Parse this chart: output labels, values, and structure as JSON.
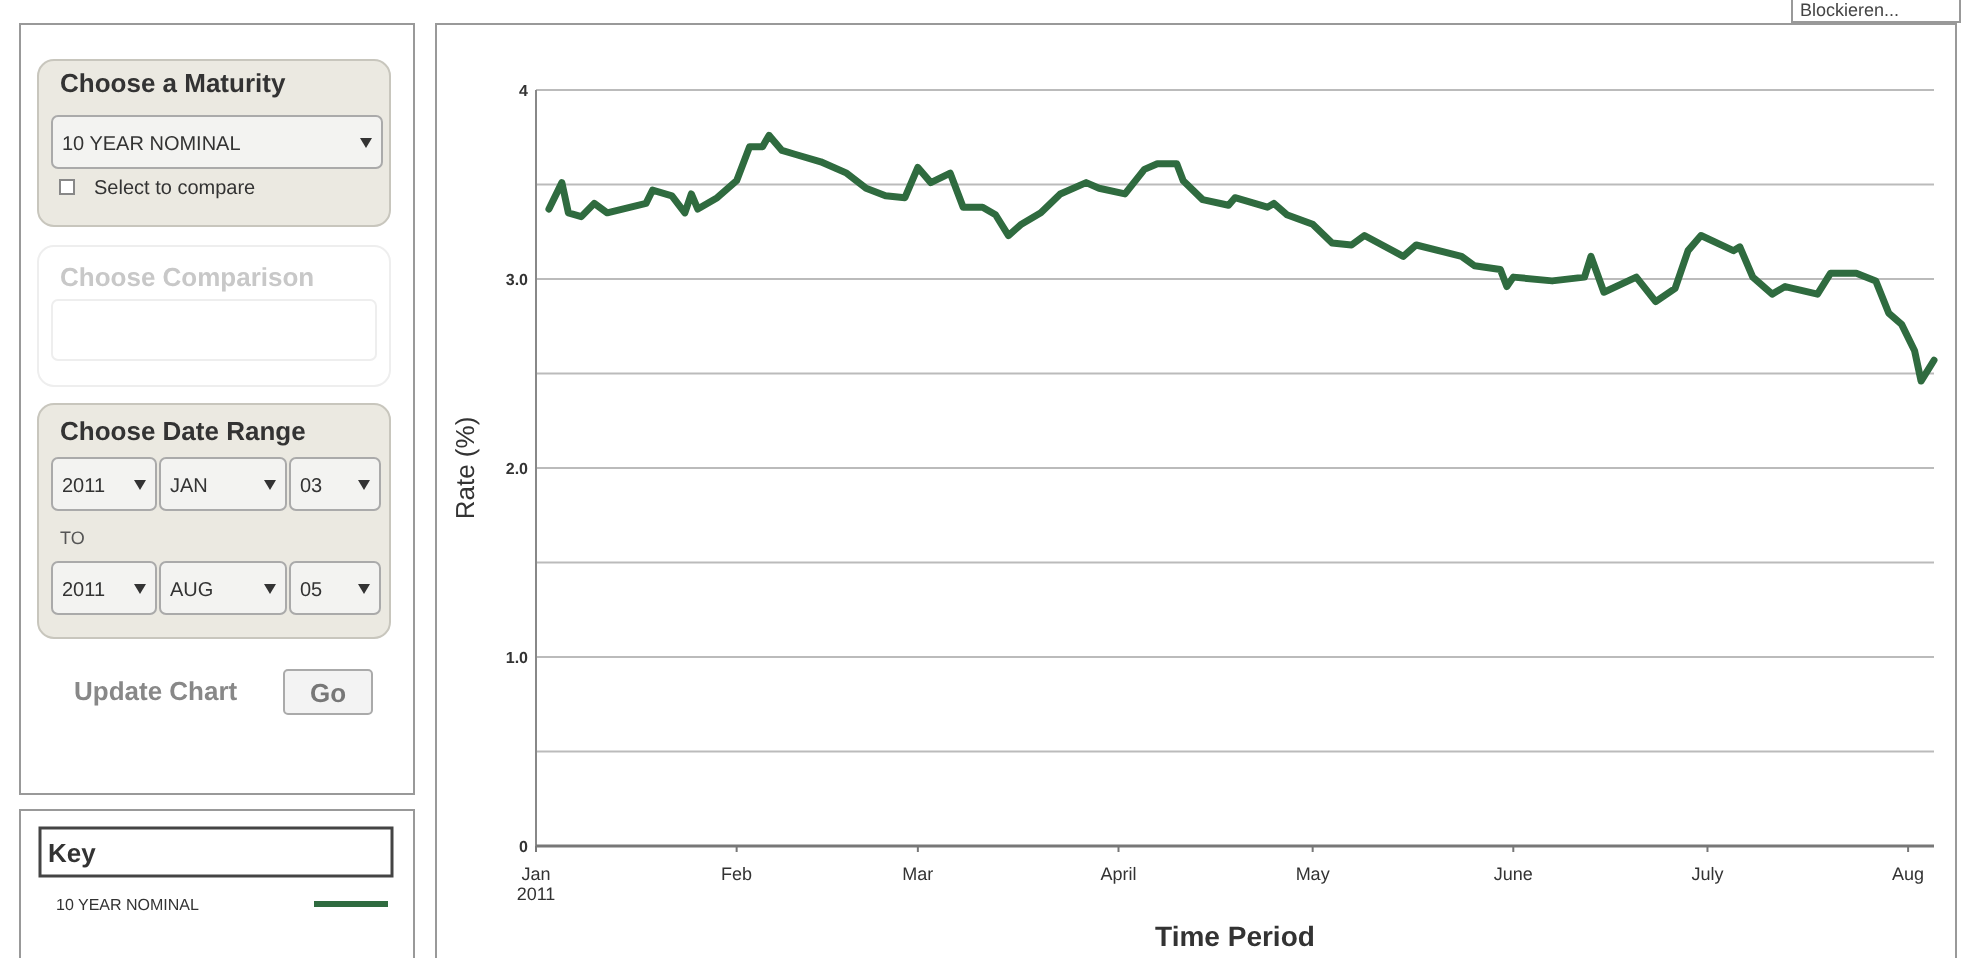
{
  "chart_data": {
    "type": "line",
    "xlabel": "Time Period",
    "ylabel": "Rate (%)",
    "legend_title": "Key",
    "legend": "left",
    "grid": "y",
    "marker": "none",
    "line_style": "solid",
    "xlim": [
      "2011-01-01",
      "2011-08-05"
    ],
    "xticks": [
      {
        "value": "2011-01-01",
        "label": "Jan\n2011"
      },
      {
        "value": "2011-02-01",
        "label": "Feb"
      },
      {
        "value": "2011-03-01",
        "label": "Mar"
      },
      {
        "value": "2011-04-01",
        "label": "April"
      },
      {
        "value": "2011-05-01",
        "label": "May"
      },
      {
        "value": "2011-06-01",
        "label": "June"
      },
      {
        "value": "2011-07-01",
        "label": "July"
      },
      {
        "value": "2011-08-01",
        "label": "Aug"
      }
    ],
    "ylim": [
      0,
      4
    ],
    "yticks": [
      0,
      {
        "value": 0.5,
        "label": null
      },
      {
        "value": 1,
        "label": "1.0"
      },
      {
        "value": 1.5,
        "label": null
      },
      {
        "value": 2,
        "label": "2.0"
      },
      {
        "value": 2.5,
        "label": null
      },
      {
        "value": 3,
        "label": "3.0"
      },
      {
        "value": 3.5,
        "label": null
      },
      4
    ],
    "x": [
      "2011-01-03",
      "2011-01-05",
      "2011-01-06",
      "2011-01-08",
      "2011-01-10",
      "2011-01-12",
      "2011-01-18",
      "2011-01-19",
      "2011-01-22",
      "2011-01-24",
      "2011-01-25",
      "2011-01-26",
      "2011-01-29",
      "2011-02-01",
      "2011-02-03",
      "2011-02-05",
      "2011-02-06",
      "2011-02-08",
      "2011-02-10",
      "2011-02-14",
      "2011-02-18",
      "2011-02-21",
      "2011-02-24",
      "2011-02-27",
      "2011-03-01",
      "2011-03-03",
      "2011-03-06",
      "2011-03-08",
      "2011-03-11",
      "2011-03-13",
      "2011-03-15",
      "2011-03-17",
      "2011-03-20",
      "2011-03-23",
      "2011-03-27",
      "2011-03-29",
      "2011-04-02",
      "2011-04-05",
      "2011-04-07",
      "2011-04-10",
      "2011-04-11",
      "2011-04-14",
      "2011-04-18",
      "2011-04-19",
      "2011-04-24",
      "2011-04-25",
      "2011-04-27",
      "2011-05-01",
      "2011-05-04",
      "2011-05-07",
      "2011-05-09",
      "2011-05-15",
      "2011-05-17",
      "2011-05-24",
      "2011-05-26",
      "2011-05-30",
      "2011-05-31",
      "2011-06-01",
      "2011-06-07",
      "2011-06-12",
      "2011-06-13",
      "2011-06-15",
      "2011-06-20",
      "2011-06-23",
      "2011-06-26",
      "2011-06-28",
      "2011-06-30",
      "2011-07-05",
      "2011-07-06",
      "2011-07-08",
      "2011-07-11",
      "2011-07-13",
      "2011-07-18",
      "2011-07-20",
      "2011-07-24",
      "2011-07-27",
      "2011-07-29",
      "2011-07-31",
      "2011-08-02",
      "2011-08-03",
      "2011-08-05"
    ],
    "series": [
      {
        "name": "10 YEAR NOMINAL",
        "color": "#2f6b3f",
        "values": [
          3.37,
          3.51,
          3.35,
          3.33,
          3.4,
          3.35,
          3.4,
          3.47,
          3.44,
          3.35,
          3.45,
          3.37,
          3.43,
          3.52,
          3.7,
          3.7,
          3.76,
          3.68,
          3.66,
          3.62,
          3.56,
          3.48,
          3.44,
          3.43,
          3.59,
          3.51,
          3.56,
          3.38,
          3.38,
          3.34,
          3.23,
          3.29,
          3.35,
          3.45,
          3.51,
          3.48,
          3.45,
          3.58,
          3.61,
          3.61,
          3.52,
          3.42,
          3.39,
          3.43,
          3.38,
          3.4,
          3.34,
          3.29,
          3.19,
          3.18,
          3.23,
          3.12,
          3.18,
          3.12,
          3.07,
          3.05,
          2.96,
          3.01,
          2.99,
          3.01,
          3.12,
          2.93,
          3.01,
          2.88,
          2.95,
          3.15,
          3.23,
          3.15,
          3.17,
          3.01,
          2.92,
          2.96,
          2.92,
          3.03,
          3.03,
          2.99,
          2.82,
          2.76,
          2.62,
          2.46,
          2.57
        ]
      }
    ],
    "annotations": [
      "Choose a Maturity",
      "10 YEAR NOMINAL",
      "Select to compare",
      "Choose Comparison",
      "Choose Date Range",
      "2011",
      "JAN",
      "03",
      "TO",
      "2011",
      "AUG",
      "05",
      "Update Chart",
      "Go",
      "Blockieren..."
    ]
  }
}
